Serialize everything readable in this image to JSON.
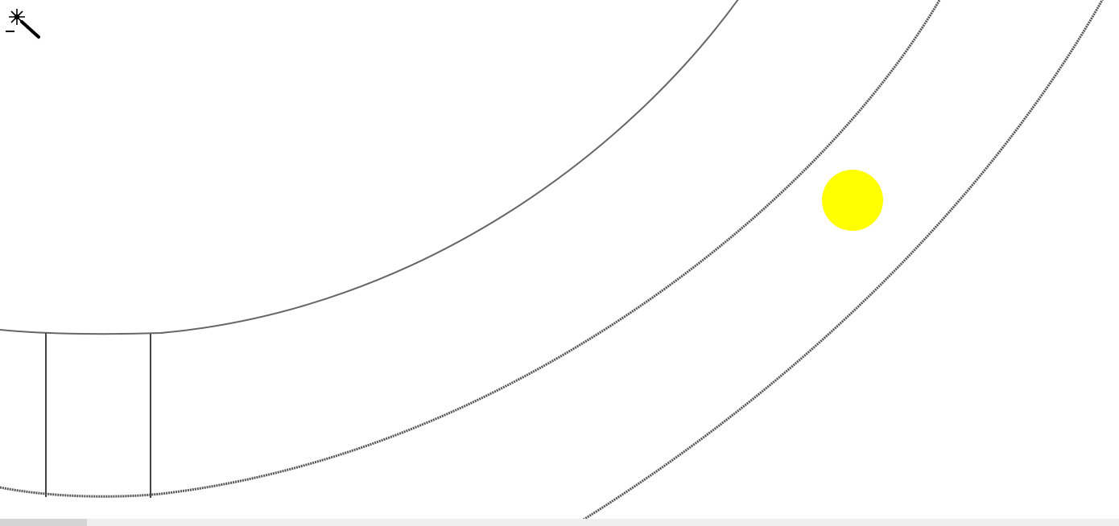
{
  "canvas": {
    "background_color": "#ffffff",
    "stroke_color": "#555555",
    "content": "vector-drawing-arcs"
  },
  "cursor": {
    "tool": "magic-wand-icon",
    "highlight_color": "#ffff00"
  },
  "scrollbar": {
    "track_color": "#efefef",
    "thumb_color": "#d4d4d4"
  }
}
